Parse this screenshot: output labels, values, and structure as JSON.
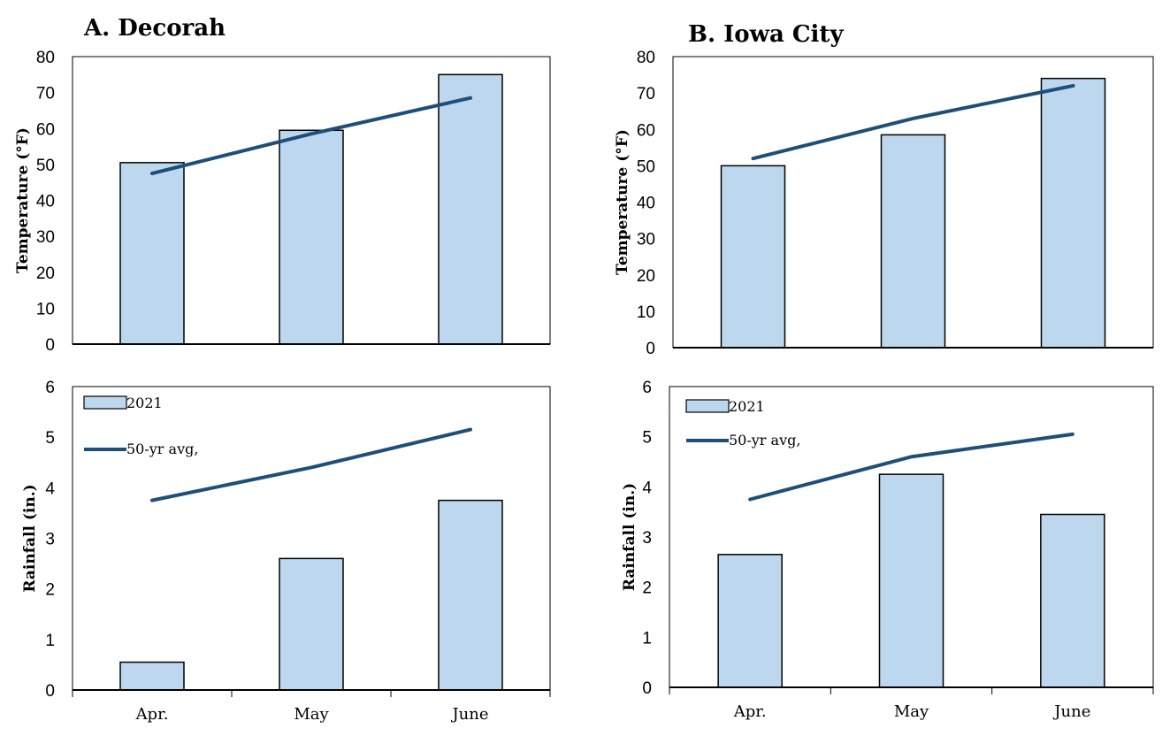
{
  "colors": {
    "bar_fill": "#bdd7ee",
    "bar_stroke": "#000000",
    "line": "#1f4e79"
  },
  "chart_data": [
    {
      "type": "bar",
      "title": "A. Decorah",
      "ylabel": "Temperature (°F)",
      "categories": [
        "Apr.",
        "May",
        "June"
      ],
      "ylim": [
        0,
        80
      ],
      "yticks": [
        0,
        10,
        20,
        30,
        40,
        50,
        60,
        70,
        80
      ],
      "series": [
        {
          "name": "2021",
          "kind": "bar",
          "values": [
            50.5,
            59.5,
            75
          ]
        },
        {
          "name": "50-yr avg,",
          "kind": "line",
          "values": [
            47.5,
            58.5,
            68.5
          ]
        }
      ]
    },
    {
      "type": "bar",
      "title": "B. Iowa City",
      "ylabel": "Temperature (°F)",
      "categories": [
        "Apr.",
        "May",
        "June"
      ],
      "ylim": [
        0,
        80
      ],
      "yticks": [
        0,
        10,
        20,
        30,
        40,
        50,
        60,
        70,
        80
      ],
      "series": [
        {
          "name": "2021",
          "kind": "bar",
          "values": [
            50,
            58.5,
            74
          ]
        },
        {
          "name": "50-yr avg,",
          "kind": "line",
          "values": [
            52,
            63,
            72
          ]
        }
      ]
    },
    {
      "type": "bar",
      "title": "",
      "ylabel": "Rainfall (in.)",
      "categories": [
        "Apr.",
        "May",
        "June"
      ],
      "ylim": [
        0,
        6
      ],
      "yticks": [
        0,
        1,
        2,
        3,
        4,
        5,
        6
      ],
      "legend": "top-left",
      "series": [
        {
          "name": "2021",
          "kind": "bar",
          "values": [
            0.55,
            2.6,
            3.75
          ]
        },
        {
          "name": "50-yr avg,",
          "kind": "line",
          "values": [
            3.75,
            4.4,
            5.15
          ]
        }
      ]
    },
    {
      "type": "bar",
      "title": "",
      "ylabel": "Rainfall (in.)",
      "categories": [
        "Apr.",
        "May",
        "June"
      ],
      "ylim": [
        0,
        6
      ],
      "yticks": [
        0,
        1,
        2,
        3,
        4,
        5,
        6
      ],
      "legend": "top-left",
      "series": [
        {
          "name": "2021",
          "kind": "bar",
          "values": [
            2.65,
            4.25,
            3.45
          ]
        },
        {
          "name": "50-yr avg,",
          "kind": "line",
          "values": [
            3.75,
            4.6,
            5.05
          ]
        }
      ]
    }
  ]
}
